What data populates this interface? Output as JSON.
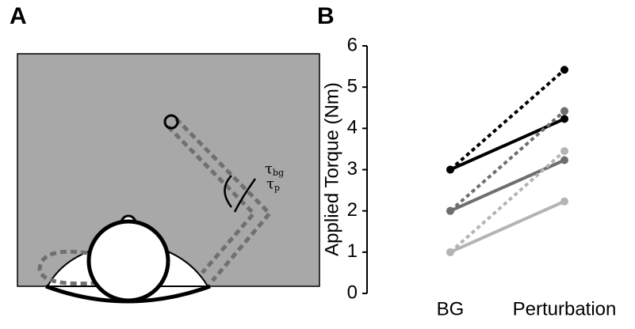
{
  "panel_labels": [
    "A",
    "B"
  ],
  "diagram": {
    "tau_bg": {
      "symbol": "τ",
      "subscript": "bg"
    },
    "tau_p": {
      "symbol": "τ",
      "subscript": "p"
    }
  },
  "chart_data": {
    "type": "line",
    "y_label": "Applied Torque (Nm)",
    "categories": [
      "BG",
      "Perturbation"
    ],
    "ylim": [
      0,
      6
    ],
    "yticks": [
      0,
      1,
      2,
      3,
      4,
      5,
      6
    ],
    "series": [
      {
        "color": "#000000",
        "dashed": true,
        "values": [
          3,
          5.42
        ]
      },
      {
        "color": "#000000",
        "dashed": false,
        "values": [
          3,
          4.23
        ]
      },
      {
        "color": "#6e6e6e",
        "dashed": true,
        "values": [
          2,
          4.42
        ]
      },
      {
        "color": "#6e6e6e",
        "dashed": false,
        "values": [
          2,
          3.23
        ]
      },
      {
        "color": "#b4b4b4",
        "dashed": true,
        "values": [
          1,
          3.45
        ]
      },
      {
        "color": "#b4b4b4",
        "dashed": false,
        "values": [
          1,
          2.23
        ]
      }
    ]
  }
}
